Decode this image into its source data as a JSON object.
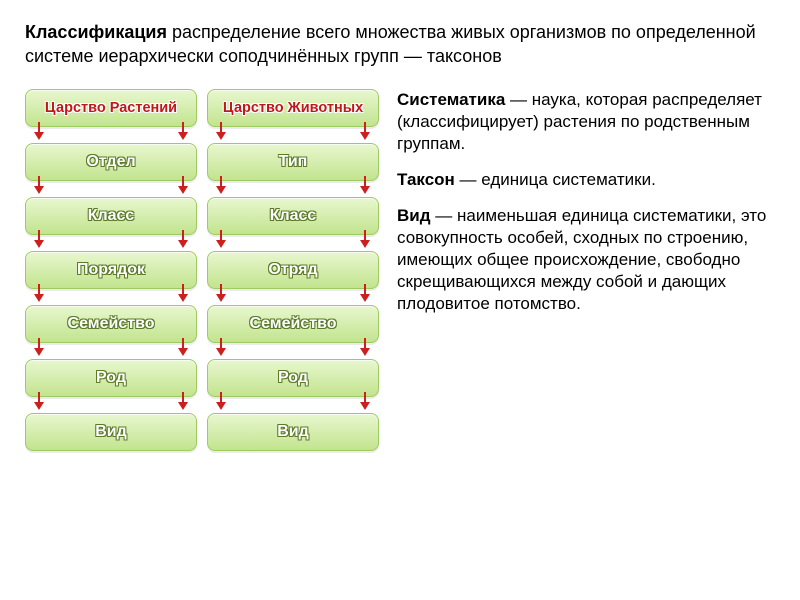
{
  "intro": {
    "bold": "Классификация",
    "rest": " распределение всего множества живых организмов по определенной системе иерархически соподчинённых групп — таксонов"
  },
  "columns": [
    {
      "header": "Царство Растений",
      "levels": [
        "Отдел",
        "Класс",
        "Порядок",
        "Семейство",
        "Род",
        "Вид"
      ]
    },
    {
      "header": "Царство Животных",
      "levels": [
        "Тип",
        "Класс",
        "Отряд",
        "Семейство",
        "Род",
        "Вид"
      ]
    }
  ],
  "style": {
    "box_bg_top": "#e8f7cf",
    "box_bg_bottom": "#c2e48e",
    "box_border": "#9ecb5f",
    "header_text_color": "#c01818",
    "header_outline": "#ffffff",
    "level_text_color": "#ffffff",
    "level_outline": "#5a7a28",
    "arrow_color": "#cc2020",
    "body_bg": "#ffffff"
  },
  "definitions": [
    {
      "term": "Систематика",
      "text": " — наука, которая распределяет (классифицирует) растения по родственным группам."
    },
    {
      "term": "Таксон",
      "text": " — единица систематики."
    },
    {
      "term": "Вид",
      "text": " — наименьшая единица систематики, это совокупность особей, сходных по строению, имеющих общее происхождение, свободно скрещивающихся между собой и дающих плодовитое потомство."
    }
  ]
}
